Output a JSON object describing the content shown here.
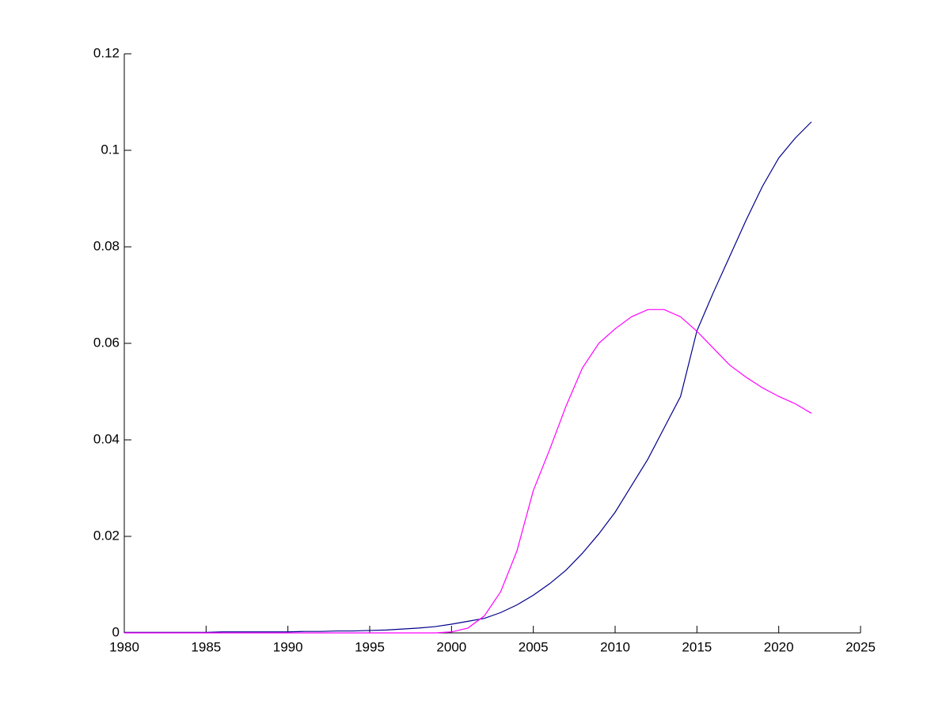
{
  "chart_data": {
    "type": "line",
    "x": [
      1980,
      1981,
      1982,
      1983,
      1984,
      1985,
      1986,
      1987,
      1988,
      1989,
      1990,
      1991,
      1992,
      1993,
      1994,
      1995,
      1996,
      1997,
      1998,
      1999,
      2000,
      2001,
      2002,
      2003,
      2004,
      2005,
      2006,
      2007,
      2008,
      2009,
      2010,
      2011,
      2012,
      2013,
      2014,
      2015,
      2016,
      2017,
      2018,
      2019,
      2020,
      2021,
      2022
    ],
    "series": [
      {
        "color": "#00008b",
        "values": [
          0.0001,
          0.0001,
          0.0001,
          0.0001,
          0.0001,
          0.0001,
          0.0002,
          0.0002,
          0.0002,
          0.0002,
          0.0002,
          0.0003,
          0.0003,
          0.0004,
          0.0004,
          0.0005,
          0.0006,
          0.0008,
          0.001,
          0.0013,
          0.0018,
          0.0024,
          0.003,
          0.0042,
          0.0058,
          0.0078,
          0.0102,
          0.013,
          0.0165,
          0.0205,
          0.025,
          0.0305,
          0.036,
          0.0425,
          0.049,
          0.0626,
          0.0705,
          0.078,
          0.0855,
          0.0925,
          0.0984,
          0.1025,
          0.1059
        ]
      },
      {
        "color": "#ff00ff",
        "values": [
          0,
          0,
          0,
          0,
          0,
          0,
          0,
          0,
          0,
          0,
          0,
          0,
          0,
          0,
          0,
          0,
          0,
          0,
          0,
          0,
          0.0002,
          0.001,
          0.0035,
          0.0085,
          0.017,
          0.0295,
          0.038,
          0.047,
          0.0549,
          0.06,
          0.063,
          0.0655,
          0.067,
          0.067,
          0.0655,
          0.0625,
          0.059,
          0.0555,
          0.053,
          0.0508,
          0.049,
          0.0475,
          0.0455
        ]
      }
    ],
    "xlim": [
      1980,
      2025
    ],
    "xticks": [
      1980,
      1985,
      1990,
      1995,
      2000,
      2005,
      2010,
      2015,
      2020,
      2025
    ],
    "ylim": [
      0,
      0.12
    ],
    "yticks": [
      0,
      0.02,
      0.04,
      0.06,
      0.08,
      0.1,
      0.12
    ]
  }
}
